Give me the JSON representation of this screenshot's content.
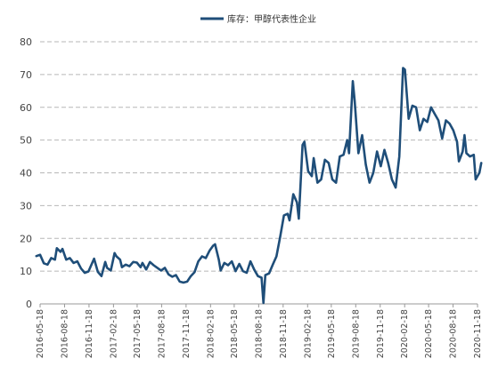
{
  "chart_data": {
    "type": "line",
    "title": "",
    "xlabel": "",
    "ylabel": "",
    "ylim": [
      0,
      80
    ],
    "y_ticks": [
      0,
      10,
      20,
      30,
      40,
      50,
      60,
      70,
      80
    ],
    "grid": true,
    "legend_position": "top-center",
    "series_color": "#1f4e79",
    "x_ticks": [
      "2016-05-18",
      "2016-08-18",
      "2016-11-18",
      "2017-02-18",
      "2017-05-18",
      "2017-08-18",
      "2017-11-18",
      "2018-02-18",
      "2018-05-18",
      "2018-08-18",
      "2018-11-18",
      "2019-02-18",
      "2019-05-18",
      "2019-08-18",
      "2019-11-18",
      "2020-02-18",
      "2020-05-18",
      "2020-08-18",
      "2020-11-18"
    ],
    "series": [
      {
        "name": "库存：甲醇代表性企业",
        "points": [
          [
            "2016-05-04",
            14.6
          ],
          [
            "2016-05-18",
            15.0
          ],
          [
            "2016-06-01",
            12.4
          ],
          [
            "2016-06-15",
            12.0
          ],
          [
            "2016-06-29",
            14.0
          ],
          [
            "2016-07-13",
            13.5
          ],
          [
            "2016-07-20",
            17.0
          ],
          [
            "2016-08-03",
            15.9
          ],
          [
            "2016-08-10",
            16.8
          ],
          [
            "2016-08-24",
            13.5
          ],
          [
            "2016-09-07",
            14.0
          ],
          [
            "2016-09-21",
            12.5
          ],
          [
            "2016-10-05",
            13.0
          ],
          [
            "2016-10-19",
            10.8
          ],
          [
            "2016-11-02",
            9.5
          ],
          [
            "2016-11-16",
            9.9
          ],
          [
            "2016-11-30",
            12.5
          ],
          [
            "2016-12-07",
            13.8
          ],
          [
            "2016-12-21",
            9.8
          ],
          [
            "2017-01-04",
            8.5
          ],
          [
            "2017-01-18",
            12.8
          ],
          [
            "2017-01-25",
            11.0
          ],
          [
            "2017-02-08",
            10.2
          ],
          [
            "2017-02-22",
            15.5
          ],
          [
            "2017-03-01",
            14.5
          ],
          [
            "2017-03-15",
            13.5
          ],
          [
            "2017-03-22",
            11.2
          ],
          [
            "2017-04-05",
            12.0
          ],
          [
            "2017-04-19",
            11.5
          ],
          [
            "2017-05-03",
            12.8
          ],
          [
            "2017-05-17",
            12.6
          ],
          [
            "2017-05-31",
            11.2
          ],
          [
            "2017-06-07",
            12.5
          ],
          [
            "2017-06-21",
            10.5
          ],
          [
            "2017-07-05",
            12.8
          ],
          [
            "2017-07-19",
            11.8
          ],
          [
            "2017-08-02",
            11.0
          ],
          [
            "2017-08-16",
            10.2
          ],
          [
            "2017-08-30",
            11.0
          ],
          [
            "2017-09-13",
            9.0
          ],
          [
            "2017-09-27",
            8.3
          ],
          [
            "2017-10-11",
            8.8
          ],
          [
            "2017-10-25",
            6.8
          ],
          [
            "2017-11-08",
            6.5
          ],
          [
            "2017-11-22",
            6.8
          ],
          [
            "2017-12-06",
            8.5
          ],
          [
            "2017-12-20",
            9.7
          ],
          [
            "2018-01-03",
            13.0
          ],
          [
            "2018-01-17",
            14.5
          ],
          [
            "2018-01-31",
            14.0
          ],
          [
            "2018-02-14",
            16.2
          ],
          [
            "2018-02-28",
            17.8
          ],
          [
            "2018-03-07",
            18.2
          ],
          [
            "2018-03-21",
            13.5
          ],
          [
            "2018-03-28",
            10.2
          ],
          [
            "2018-04-11",
            12.5
          ],
          [
            "2018-04-25",
            11.8
          ],
          [
            "2018-05-09",
            13.0
          ],
          [
            "2018-05-23",
            10.0
          ],
          [
            "2018-06-06",
            12.2
          ],
          [
            "2018-06-20",
            10.0
          ],
          [
            "2018-07-04",
            9.5
          ],
          [
            "2018-07-18",
            13.0
          ],
          [
            "2018-08-01",
            10.5
          ],
          [
            "2018-08-15",
            8.5
          ],
          [
            "2018-08-29",
            8.0
          ],
          [
            "2018-09-05",
            0.3
          ],
          [
            "2018-09-12",
            8.8
          ],
          [
            "2018-09-26",
            9.3
          ],
          [
            "2018-10-10",
            12.0
          ],
          [
            "2018-10-24",
            14.5
          ],
          [
            "2018-11-07",
            20.5
          ],
          [
            "2018-11-21",
            27.0
          ],
          [
            "2018-12-05",
            27.5
          ],
          [
            "2018-12-12",
            25.5
          ],
          [
            "2018-12-26",
            33.5
          ],
          [
            "2019-01-09",
            31.0
          ],
          [
            "2019-01-16",
            26.0
          ],
          [
            "2019-01-30",
            48.5
          ],
          [
            "2019-02-06",
            49.5
          ],
          [
            "2019-02-20",
            40.5
          ],
          [
            "2019-03-06",
            39.0
          ],
          [
            "2019-03-13",
            44.5
          ],
          [
            "2019-03-27",
            37.0
          ],
          [
            "2019-04-10",
            38.0
          ],
          [
            "2019-04-24",
            44.0
          ],
          [
            "2019-05-08",
            43.0
          ],
          [
            "2019-05-22",
            38.0
          ],
          [
            "2019-06-05",
            37.0
          ],
          [
            "2019-06-19",
            45.0
          ],
          [
            "2019-07-03",
            45.5
          ],
          [
            "2019-07-17",
            50.0
          ],
          [
            "2019-07-24",
            46.0
          ],
          [
            "2019-08-07",
            68.0
          ],
          [
            "2019-08-14",
            62.0
          ],
          [
            "2019-08-28",
            46.0
          ],
          [
            "2019-09-11",
            51.5
          ],
          [
            "2019-09-25",
            42.5
          ],
          [
            "2019-10-09",
            37.0
          ],
          [
            "2019-10-23",
            40.0
          ],
          [
            "2019-11-06",
            46.5
          ],
          [
            "2019-11-20",
            42.0
          ],
          [
            "2019-12-04",
            47.0
          ],
          [
            "2019-12-18",
            43.0
          ],
          [
            "2020-01-01",
            38.0
          ],
          [
            "2020-01-15",
            35.5
          ],
          [
            "2020-01-29",
            45.0
          ],
          [
            "2020-02-12",
            72.0
          ],
          [
            "2020-02-19",
            71.5
          ],
          [
            "2020-03-04",
            56.5
          ],
          [
            "2020-03-18",
            60.5
          ],
          [
            "2020-04-01",
            60.0
          ],
          [
            "2020-04-15",
            53.0
          ],
          [
            "2020-04-29",
            56.5
          ],
          [
            "2020-05-13",
            55.5
          ],
          [
            "2020-05-27",
            60.0
          ],
          [
            "2020-06-10",
            58.0
          ],
          [
            "2020-06-24",
            56.0
          ],
          [
            "2020-07-08",
            50.5
          ],
          [
            "2020-07-22",
            56.0
          ],
          [
            "2020-08-05",
            55.0
          ],
          [
            "2020-08-19",
            53.0
          ],
          [
            "2020-09-02",
            49.5
          ],
          [
            "2020-09-09",
            43.5
          ],
          [
            "2020-09-23",
            46.5
          ],
          [
            "2020-09-30",
            51.5
          ],
          [
            "2020-10-07",
            46.0
          ],
          [
            "2020-10-21",
            45.0
          ],
          [
            "2020-11-04",
            45.5
          ],
          [
            "2020-11-11",
            38.0
          ],
          [
            "2020-11-25",
            40.0
          ],
          [
            "2020-12-02",
            43.0
          ]
        ]
      }
    ]
  }
}
